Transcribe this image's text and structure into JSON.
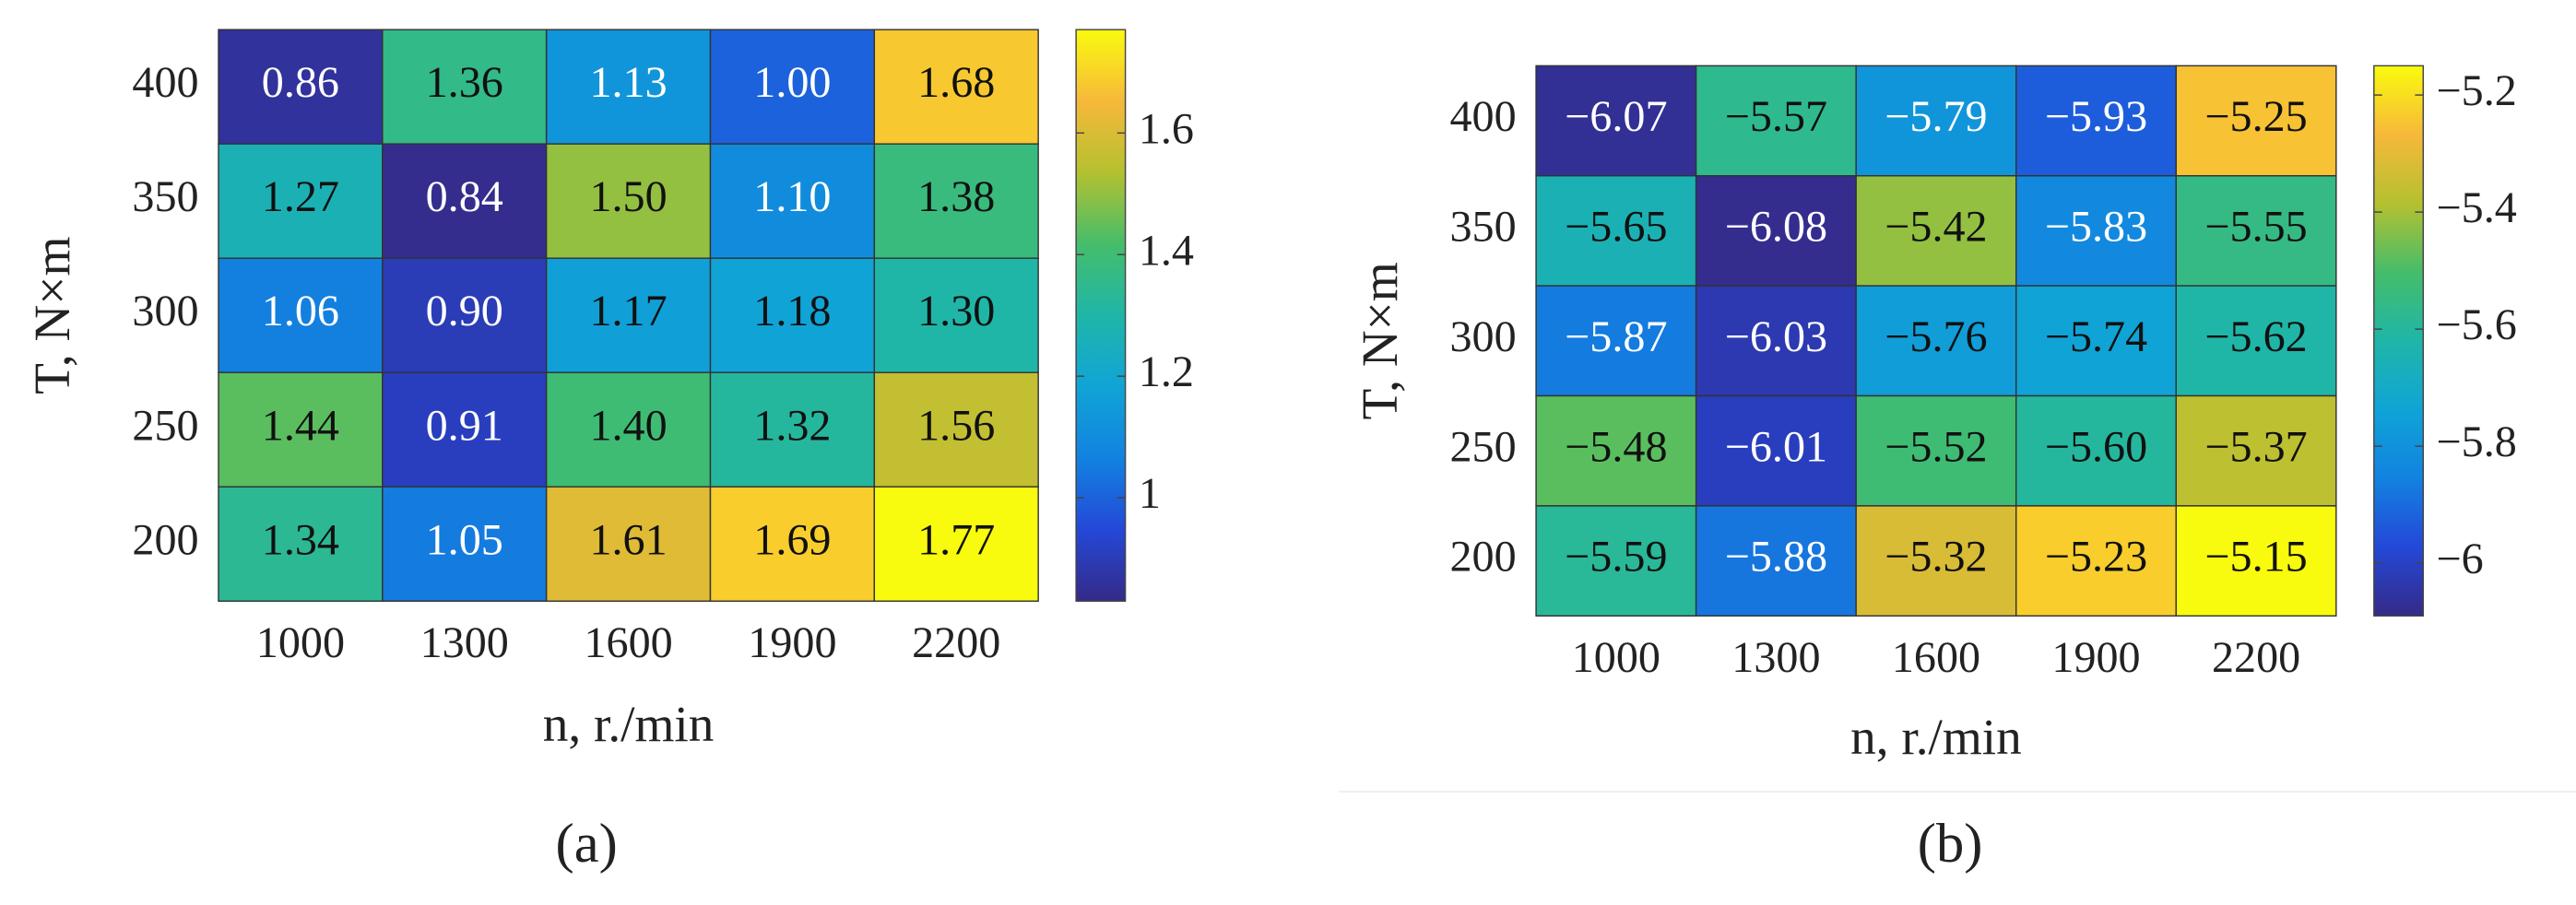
{
  "chart_data": [
    {
      "type": "heatmap",
      "panel_label": "(a)",
      "x": [
        "1000",
        "1300",
        "1600",
        "1900",
        "2200"
      ],
      "y": [
        "400",
        "350",
        "300",
        "250",
        "200"
      ],
      "xlabel": "n, r./min",
      "ylabel": "T, N×m",
      "values": [
        [
          0.86,
          1.36,
          1.13,
          1.0,
          1.68
        ],
        [
          1.27,
          0.84,
          1.5,
          1.1,
          1.38
        ],
        [
          1.06,
          0.9,
          1.17,
          1.18,
          1.3
        ],
        [
          1.44,
          0.91,
          1.4,
          1.32,
          1.56
        ],
        [
          1.34,
          1.05,
          1.61,
          1.69,
          1.77
        ]
      ],
      "value_labels": [
        [
          "0.86",
          "1.36",
          "1.13",
          "1.00",
          "1.68"
        ],
        [
          "1.27",
          "0.84",
          "1.50",
          "1.10",
          "1.38"
        ],
        [
          "1.06",
          "0.90",
          "1.17",
          "1.18",
          "1.30"
        ],
        [
          "1.44",
          "0.91",
          "1.40",
          "1.32",
          "1.56"
        ],
        [
          "1.34",
          "1.05",
          "1.61",
          "1.69",
          "1.77"
        ]
      ],
      "colormap": "parula",
      "clim": [
        0.83,
        1.77
      ],
      "cticks": [
        1,
        1.2,
        1.4,
        1.6
      ]
    },
    {
      "type": "heatmap",
      "panel_label": "(b)",
      "x": [
        "1000",
        "1300",
        "1600",
        "1900",
        "2200"
      ],
      "y": [
        "400",
        "350",
        "300",
        "250",
        "200"
      ],
      "xlabel": "n, r./min",
      "ylabel": "T, N×m",
      "values": [
        [
          -6.07,
          -5.57,
          -5.79,
          -5.93,
          -5.25
        ],
        [
          -5.65,
          -6.08,
          -5.42,
          -5.83,
          -5.55
        ],
        [
          -5.87,
          -6.03,
          -5.76,
          -5.74,
          -5.62
        ],
        [
          -5.48,
          -6.01,
          -5.52,
          -5.6,
          -5.37
        ],
        [
          -5.59,
          -5.88,
          -5.32,
          -5.23,
          -5.15
        ]
      ],
      "value_labels": [
        [
          "−6.07",
          "−5.57",
          "−5.79",
          "−5.93",
          "−5.25"
        ],
        [
          "−5.65",
          "−6.08",
          "−5.42",
          "−5.83",
          "−5.55"
        ],
        [
          "−5.87",
          "−6.03",
          "−5.76",
          "−5.74",
          "−5.62"
        ],
        [
          "−5.48",
          "−6.01",
          "−5.52",
          "−5.60",
          "−5.37"
        ],
        [
          "−5.59",
          "−5.88",
          "−5.32",
          "−5.23",
          "−5.15"
        ]
      ],
      "colormap": "parula",
      "clim": [
        -6.09,
        -5.15
      ],
      "cticks": [
        {
          "value": -6,
          "label": "−6"
        },
        {
          "value": -5.8,
          "label": "−5.8"
        },
        {
          "value": -5.6,
          "label": "−5.6"
        },
        {
          "value": -5.4,
          "label": "−5.4"
        },
        {
          "value": -5.2,
          "label": "−5.2"
        }
      ]
    }
  ]
}
